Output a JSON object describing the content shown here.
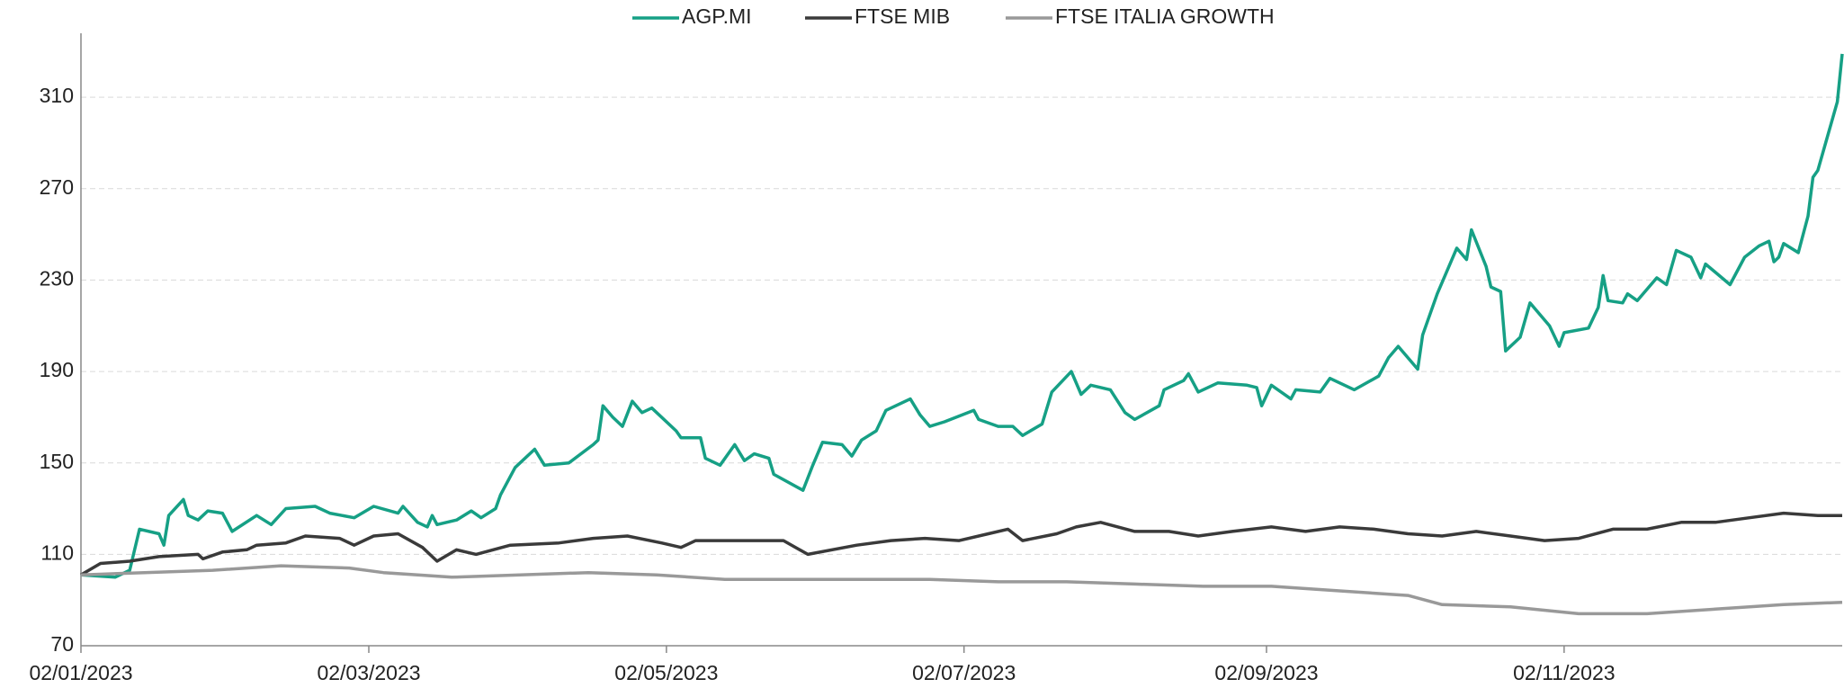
{
  "chart_data": {
    "type": "line",
    "x_format": "dd/mm/yyyy",
    "xlim": [
      "02/01/2023",
      "29/12/2023"
    ],
    "xticks": [
      "02/01/2023",
      "02/03/2023",
      "02/05/2023",
      "02/07/2023",
      "02/09/2023",
      "02/11/2023"
    ],
    "ylim": [
      70,
      338
    ],
    "yticks": [
      70,
      110,
      150,
      190,
      230,
      270,
      310
    ],
    "grid": true,
    "legend": "top",
    "series": [
      {
        "name": "AGP.MI",
        "color": "#16a085",
        "x": [
          "02/01/2023",
          "09/01/2023",
          "12/01/2023",
          "14/01/2023",
          "18/01/2023",
          "19/01/2023",
          "20/01/2023",
          "23/01/2023",
          "24/01/2023",
          "26/01/2023",
          "28/01/2023",
          "31/01/2023",
          "02/02/2023",
          "07/02/2023",
          "10/02/2023",
          "13/02/2023",
          "19/02/2023",
          "22/02/2023",
          "27/02/2023",
          "03/03/2023",
          "08/03/2023",
          "09/03/2023",
          "12/03/2023",
          "14/03/2023",
          "15/03/2023",
          "16/03/2023",
          "20/03/2023",
          "23/03/2023",
          "25/03/2023",
          "28/03/2023",
          "29/03/2023",
          "01/04/2023",
          "05/04/2023",
          "07/04/2023",
          "12/04/2023",
          "17/04/2023",
          "18/04/2023",
          "19/04/2023",
          "21/04/2023",
          "23/04/2023",
          "25/04/2023",
          "27/04/2023",
          "29/04/2023",
          "04/05/2023",
          "05/05/2023",
          "09/05/2023",
          "10/05/2023",
          "13/05/2023",
          "16/05/2023",
          "18/05/2023",
          "20/05/2023",
          "23/05/2023",
          "24/05/2023",
          "30/05/2023",
          "01/06/2023",
          "03/06/2023",
          "07/06/2023",
          "09/06/2023",
          "11/06/2023",
          "14/06/2023",
          "16/06/2023",
          "21/06/2023",
          "23/06/2023",
          "25/06/2023",
          "28/06/2023",
          "04/07/2023",
          "05/07/2023",
          "09/07/2023",
          "12/07/2023",
          "14/07/2023",
          "18/07/2023",
          "20/07/2023",
          "24/07/2023",
          "26/07/2023",
          "28/07/2023",
          "01/08/2023",
          "04/08/2023",
          "06/08/2023",
          "11/08/2023",
          "12/08/2023",
          "16/08/2023",
          "17/08/2023",
          "19/08/2023",
          "23/08/2023",
          "29/08/2023",
          "31/08/2023",
          "01/09/2023",
          "03/09/2023",
          "07/09/2023",
          "08/09/2023",
          "13/09/2023",
          "15/09/2023",
          "20/09/2023",
          "25/09/2023",
          "27/09/2023",
          "29/09/2023",
          "03/10/2023",
          "04/10/2023",
          "07/10/2023",
          "11/10/2023",
          "13/10/2023",
          "14/10/2023",
          "17/10/2023",
          "18/10/2023",
          "20/10/2023",
          "21/10/2023",
          "24/10/2023",
          "26/10/2023",
          "30/10/2023",
          "01/11/2023",
          "02/11/2023",
          "07/11/2023",
          "09/11/2023",
          "10/11/2023",
          "11/11/2023",
          "14/11/2023",
          "15/11/2023",
          "17/11/2023",
          "21/11/2023",
          "23/11/2023",
          "25/11/2023",
          "28/11/2023",
          "30/11/2023",
          "01/12/2023",
          "06/12/2023",
          "09/12/2023",
          "12/12/2023",
          "14/12/2023",
          "15/12/2023",
          "16/12/2023",
          "17/12/2023",
          "20/12/2023",
          "22/12/2023",
          "23/12/2023",
          "24/12/2023",
          "28/12/2023",
          "29/12/2023"
        ],
        "values": [
          101,
          100,
          103,
          121,
          119,
          114,
          127,
          134,
          127,
          125,
          129,
          128,
          120,
          127,
          123,
          130,
          131,
          128,
          126,
          131,
          128,
          131,
          124,
          122,
          127,
          123,
          125,
          129,
          126,
          130,
          136,
          148,
          156,
          149,
          150,
          158,
          160,
          175,
          170,
          166,
          177,
          172,
          174,
          164,
          161,
          161,
          152,
          149,
          158,
          151,
          154,
          152,
          145,
          138,
          149,
          159,
          158,
          153,
          160,
          164,
          173,
          178,
          171,
          166,
          168,
          173,
          169,
          166,
          166,
          162,
          167,
          181,
          190,
          180,
          184,
          182,
          172,
          169,
          175,
          182,
          186,
          189,
          181,
          185,
          184,
          183,
          175,
          184,
          178,
          182,
          181,
          187,
          182,
          188,
          196,
          201,
          191,
          206,
          224,
          244,
          239,
          252,
          236,
          227,
          225,
          199,
          205,
          220,
          210,
          201,
          207,
          209,
          218,
          232,
          221,
          220,
          224,
          221,
          231,
          228,
          243,
          240,
          231,
          237,
          228,
          240,
          245,
          247,
          238,
          240,
          246,
          242,
          258,
          275,
          278,
          308,
          329
        ]
      },
      {
        "name": "FTSE MIB",
        "color": "#3a3a3a",
        "x": [
          "02/01/2023",
          "06/01/2023",
          "12/01/2023",
          "18/01/2023",
          "26/01/2023",
          "27/01/2023",
          "31/01/2023",
          "05/02/2023",
          "07/02/2023",
          "13/02/2023",
          "17/02/2023",
          "24/02/2023",
          "27/02/2023",
          "03/03/2023",
          "08/03/2023",
          "13/03/2023",
          "16/03/2023",
          "20/03/2023",
          "24/03/2023",
          "31/03/2023",
          "10/04/2023",
          "17/04/2023",
          "24/04/2023",
          "01/05/2023",
          "05/05/2023",
          "08/05/2023",
          "20/05/2023",
          "26/05/2023",
          "31/05/2023",
          "10/06/2023",
          "17/06/2023",
          "24/06/2023",
          "01/07/2023",
          "07/07/2023",
          "11/07/2023",
          "14/07/2023",
          "21/07/2023",
          "25/07/2023",
          "30/07/2023",
          "06/08/2023",
          "13/08/2023",
          "19/08/2023",
          "26/08/2023",
          "03/09/2023",
          "10/09/2023",
          "17/09/2023",
          "24/09/2023",
          "01/10/2023",
          "08/10/2023",
          "15/10/2023",
          "22/10/2023",
          "29/10/2023",
          "05/11/2023",
          "12/11/2023",
          "19/11/2023",
          "26/11/2023",
          "03/12/2023",
          "10/12/2023",
          "17/12/2023",
          "24/12/2023",
          "29/12/2023"
        ],
        "values": [
          101,
          106,
          107,
          109,
          110,
          108,
          111,
          112,
          114,
          115,
          118,
          117,
          114,
          118,
          119,
          113,
          107,
          112,
          110,
          114,
          115,
          117,
          118,
          115,
          113,
          116,
          116,
          116,
          110,
          114,
          116,
          117,
          116,
          119,
          121,
          116,
          119,
          122,
          124,
          120,
          120,
          118,
          120,
          122,
          120,
          122,
          121,
          119,
          118,
          120,
          118,
          116,
          117,
          121,
          121,
          124,
          124,
          126,
          128,
          127,
          127
        ]
      },
      {
        "name": "FTSE ITALIA GROWTH",
        "color": "#999999",
        "x": [
          "02/01/2023",
          "15/01/2023",
          "29/01/2023",
          "12/02/2023",
          "26/02/2023",
          "05/03/2023",
          "19/03/2023",
          "02/04/2023",
          "16/04/2023",
          "30/04/2023",
          "14/05/2023",
          "28/05/2023",
          "11/06/2023",
          "25/06/2023",
          "09/07/2023",
          "23/07/2023",
          "06/08/2023",
          "20/08/2023",
          "03/09/2023",
          "17/09/2023",
          "01/10/2023",
          "08/10/2023",
          "22/10/2023",
          "05/11/2023",
          "19/11/2023",
          "03/12/2023",
          "17/12/2023",
          "29/12/2023"
        ],
        "values": [
          101,
          102,
          103,
          105,
          104,
          102,
          100,
          101,
          102,
          101,
          99,
          99,
          99,
          99,
          98,
          98,
          97,
          96,
          96,
          94,
          92,
          88,
          87,
          84,
          84,
          86,
          88,
          89
        ]
      }
    ]
  }
}
